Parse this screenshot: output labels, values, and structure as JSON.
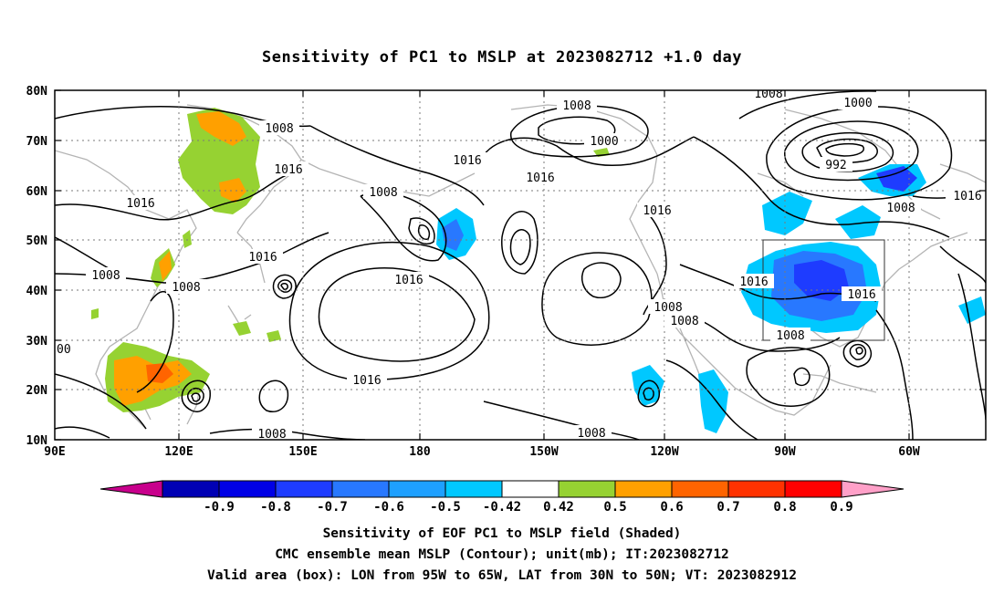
{
  "title": "Sensitivity of PC1 to MSLP at 2023082712 +1.0 day",
  "lat_ticks": [
    "80N",
    "70N",
    "60N",
    "50N",
    "40N",
    "30N",
    "20N",
    "10N"
  ],
  "lon_ticks": [
    "90E",
    "120E",
    "150E",
    "180",
    "150W",
    "120W",
    "90W",
    "60W"
  ],
  "contour_labels": [
    "1008",
    "1008",
    "1000",
    "1000",
    "1016",
    "1016",
    "1016",
    "1008",
    "1016",
    "1016",
    "992",
    "1008",
    "1016",
    "1008",
    "1008",
    "1016",
    "1016",
    "1008",
    "1016",
    "1016",
    "1008",
    "1008",
    "1008",
    "1016",
    "00",
    "1008"
  ],
  "colorbar": {
    "labels": [
      "-0.9",
      "-0.8",
      "-0.7",
      "-0.6",
      "-0.5",
      "-0.42",
      "0.42",
      "0.5",
      "0.6",
      "0.7",
      "0.8",
      "0.9"
    ],
    "colors": [
      "#c8008c",
      "#0000b4",
      "#0000e6",
      "#1e3cff",
      "#2878ff",
      "#1ea0ff",
      "#00c8ff",
      "#ffffff",
      "#96d232",
      "#ffa000",
      "#ff6400",
      "#ff3200",
      "#ff0000",
      "#ffa0c8"
    ]
  },
  "valid_box": {
    "lon_range": [
      "95W",
      "65W"
    ],
    "lat_range": [
      "30N",
      "50N"
    ]
  },
  "captions": [
    "Sensitivity of EOF PC1 to MSLP field (Shaded)",
    "CMC ensemble mean MSLP (Contour); unit(mb); IT:2023082712",
    "Valid area (box): LON from 95W to 65W, LAT from 30N to 50N; VT: 2023082912"
  ]
}
